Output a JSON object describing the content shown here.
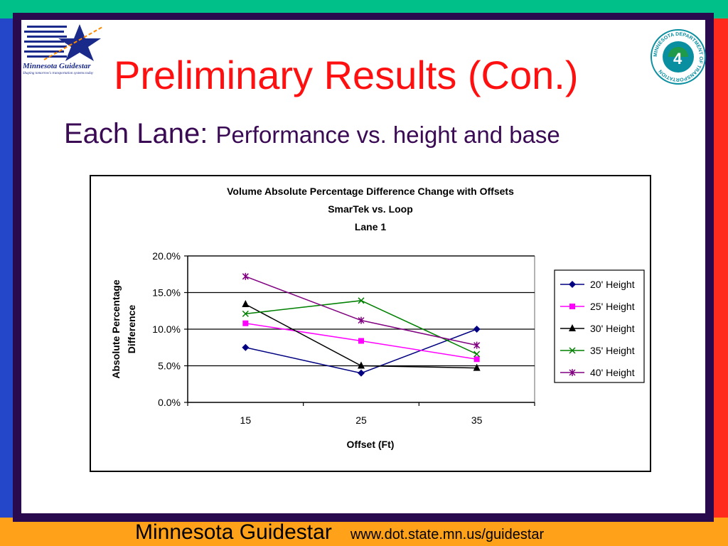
{
  "slide": {
    "title": "Preliminary Results (Con.)",
    "subtitle_main": "Each Lane: ",
    "subtitle_rest": "Performance vs. height and base",
    "footer_name": "Minnesota Guidestar",
    "footer_url": "www.dot.state.mn.us/guidestar",
    "logo_left_text": "Minnesota Guidestar",
    "logo_left_tagline": "Shaping tomorrow's transportation systems today",
    "logo_right_text": "MINNESOTA DEPARTMENT OF TRANSPORTATION",
    "colors": {
      "title": "#ff1010",
      "subtitle": "#3a0a54",
      "frame": "#2a0a4f",
      "top_band": "#00c08a",
      "left_band": "#2446c8",
      "right_band": "#ff2b1c",
      "bottom_band": "#ffa21a"
    }
  },
  "chart_data": {
    "type": "line",
    "title_lines": [
      "Volume Absolute Percentage Difference Change with Offsets",
      "SmarTek vs. Loop",
      "Lane 1"
    ],
    "xlabel": "Offset (Ft)",
    "ylabel_lines": [
      "Absolute Percentage",
      "Difference"
    ],
    "categories": [
      "15",
      "25",
      "35"
    ],
    "y_ticks": [
      "0.0%",
      "5.0%",
      "10.0%",
      "15.0%",
      "20.0%"
    ],
    "ylim": [
      0,
      20
    ],
    "grid": "horizontal",
    "legend_position": "right",
    "series": [
      {
        "name": "20' Height",
        "values": [
          7.5,
          4.0,
          10.0
        ],
        "color": "#000080",
        "marker": "diamond"
      },
      {
        "name": "25' Height",
        "values": [
          10.8,
          8.4,
          5.9
        ],
        "color": "#ff00ff",
        "marker": "square"
      },
      {
        "name": "30' Height",
        "values": [
          13.4,
          5.0,
          4.7
        ],
        "color": "#000000",
        "marker": "triangle"
      },
      {
        "name": "35' Height",
        "values": [
          12.1,
          13.9,
          6.6
        ],
        "color": "#008000",
        "marker": "x"
      },
      {
        "name": "40' Height",
        "values": [
          17.2,
          11.2,
          7.8
        ],
        "color": "#800080",
        "marker": "star"
      }
    ]
  }
}
